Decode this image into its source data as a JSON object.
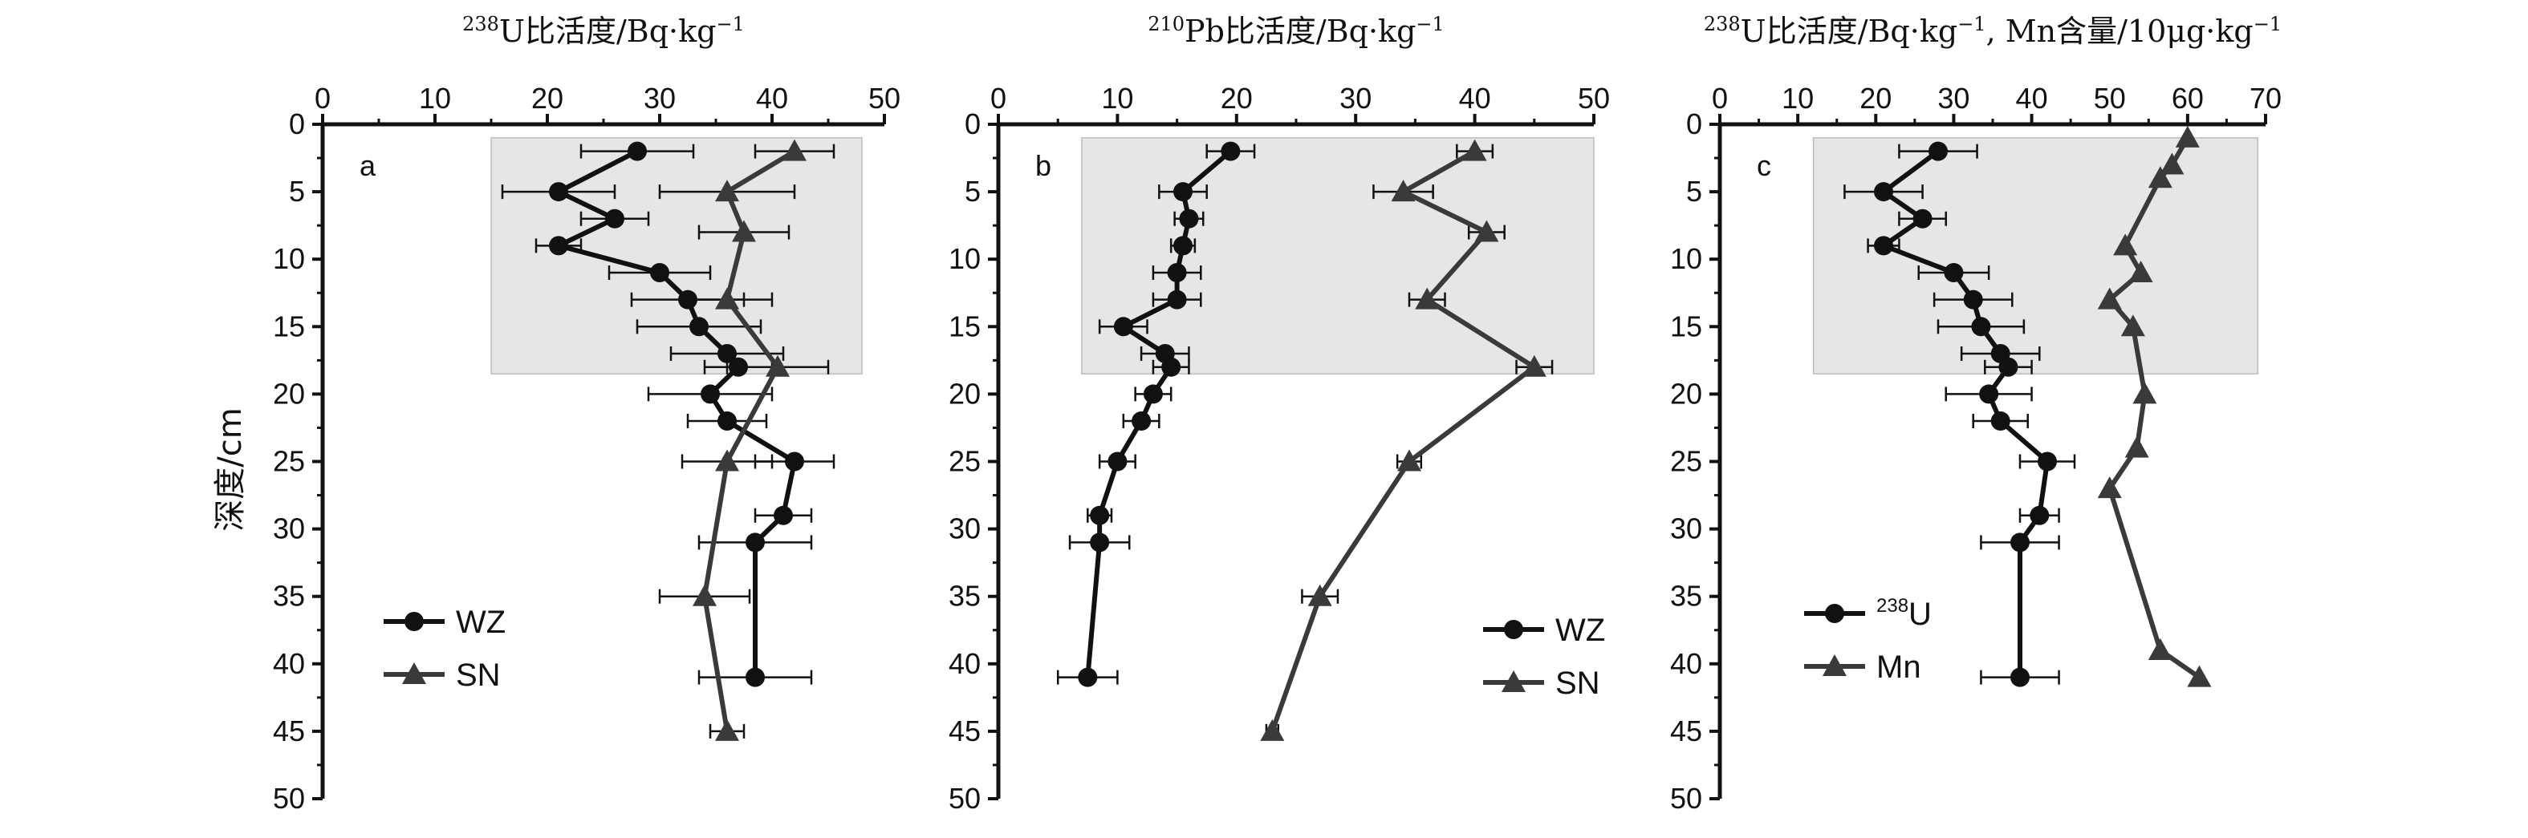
{
  "chart_data": [
    {
      "type": "line",
      "panel_label": "a",
      "title": {
        "sup": "238",
        "text": "U比活度/Bq·kg",
        "exp": "−1"
      },
      "ylabel": "深度/cm",
      "xlim": [
        0,
        50
      ],
      "xticks": [
        0,
        10,
        20,
        30,
        40,
        50
      ],
      "ylim": [
        0,
        50
      ],
      "yticks": [
        0,
        5,
        10,
        15,
        20,
        25,
        30,
        35,
        40,
        45,
        50
      ],
      "shaded_region": {
        "x": [
          15,
          48
        ],
        "y": [
          1,
          18.5
        ]
      },
      "legend_position": "lower-left",
      "series": [
        {
          "name": "WZ",
          "marker": "circle",
          "color": "#111111",
          "points": [
            {
              "x": 28,
              "y": 2,
              "err": 5
            },
            {
              "x": 21,
              "y": 5,
              "err": 5
            },
            {
              "x": 26,
              "y": 7,
              "err": 3
            },
            {
              "x": 21,
              "y": 9,
              "err": 2
            },
            {
              "x": 30,
              "y": 11,
              "err": 4.5
            },
            {
              "x": 32.5,
              "y": 13,
              "err": 5
            },
            {
              "x": 33.5,
              "y": 15,
              "err": 5.5
            },
            {
              "x": 36,
              "y": 17,
              "err": 5
            },
            {
              "x": 37,
              "y": 18,
              "err": 3
            },
            {
              "x": 34.5,
              "y": 20,
              "err": 5.5
            },
            {
              "x": 36,
              "y": 22,
              "err": 3.5
            },
            {
              "x": 42,
              "y": 25,
              "err": 3.5
            },
            {
              "x": 41,
              "y": 29,
              "err": 2.5
            },
            {
              "x": 38.5,
              "y": 31,
              "err": 5
            },
            {
              "x": 38.5,
              "y": 41,
              "err": 5
            }
          ]
        },
        {
          "name": "SN",
          "marker": "triangle",
          "color": "#3a3a3a",
          "points": [
            {
              "x": 42,
              "y": 2,
              "err": 3.5
            },
            {
              "x": 36,
              "y": 5,
              "err": 6
            },
            {
              "x": 37.5,
              "y": 8,
              "err": 4
            },
            {
              "x": 36,
              "y": 13,
              "err": 4
            },
            {
              "x": 40.5,
              "y": 18,
              "err": 4.5
            },
            {
              "x": 36,
              "y": 25,
              "err": 4
            },
            {
              "x": 34,
              "y": 35,
              "err": 4
            },
            {
              "x": 36,
              "y": 45,
              "err": 1.5
            }
          ]
        }
      ]
    },
    {
      "type": "line",
      "panel_label": "b",
      "title": {
        "sup": "210",
        "text": "Pb比活度/Bq·kg",
        "exp": "−1"
      },
      "xlim": [
        0,
        50
      ],
      "xticks": [
        0,
        10,
        20,
        30,
        40,
        50
      ],
      "ylim": [
        0,
        50
      ],
      "yticks": [
        0,
        5,
        10,
        15,
        20,
        25,
        30,
        35,
        40,
        45,
        50
      ],
      "shaded_region": {
        "x": [
          7,
          50
        ],
        "y": [
          1,
          18.5
        ]
      },
      "legend_position": "lower-right",
      "series": [
        {
          "name": "WZ",
          "marker": "circle",
          "color": "#111111",
          "points": [
            {
              "x": 19.5,
              "y": 2,
              "err": 2
            },
            {
              "x": 15.5,
              "y": 5,
              "err": 2
            },
            {
              "x": 16,
              "y": 7,
              "err": 1.2
            },
            {
              "x": 15.5,
              "y": 9,
              "err": 1
            },
            {
              "x": 15,
              "y": 11,
              "err": 2
            },
            {
              "x": 15,
              "y": 13,
              "err": 2
            },
            {
              "x": 10.5,
              "y": 15,
              "err": 2
            },
            {
              "x": 14,
              "y": 17,
              "err": 2
            },
            {
              "x": 14.5,
              "y": 18,
              "err": 1.5
            },
            {
              "x": 13,
              "y": 20,
              "err": 1.5
            },
            {
              "x": 12,
              "y": 22,
              "err": 1.5
            },
            {
              "x": 10,
              "y": 25,
              "err": 1.5
            },
            {
              "x": 8.5,
              "y": 29,
              "err": 1
            },
            {
              "x": 8.5,
              "y": 31,
              "err": 2.5
            },
            {
              "x": 7.5,
              "y": 41,
              "err": 2.5
            }
          ]
        },
        {
          "name": "SN",
          "marker": "triangle",
          "color": "#3a3a3a",
          "points": [
            {
              "x": 40,
              "y": 2,
              "err": 1.5
            },
            {
              "x": 34,
              "y": 5,
              "err": 2.5
            },
            {
              "x": 41,
              "y": 8,
              "err": 1.5
            },
            {
              "x": 36,
              "y": 13,
              "err": 1.5
            },
            {
              "x": 45,
              "y": 18,
              "err": 1.5
            },
            {
              "x": 34.5,
              "y": 25,
              "err": 1
            },
            {
              "x": 27,
              "y": 35,
              "err": 1.5
            },
            {
              "x": 23,
              "y": 45,
              "err": 0.5
            }
          ]
        }
      ]
    },
    {
      "type": "line",
      "panel_label": "c",
      "title": {
        "sup": "238",
        "text": "U比活度/Bq·kg",
        "exp": "−1",
        "tail": ", Mn含量/10μg·kg",
        "exp2": "−1"
      },
      "xlim": [
        0,
        70
      ],
      "xticks": [
        0,
        10,
        20,
        30,
        40,
        50,
        60,
        70
      ],
      "ylim": [
        0,
        50
      ],
      "yticks": [
        0,
        5,
        10,
        15,
        20,
        25,
        30,
        35,
        40,
        45,
        50
      ],
      "shaded_region": {
        "x": [
          12,
          69
        ],
        "y": [
          1,
          18.5
        ]
      },
      "legend_position": "lower-left",
      "series": [
        {
          "name": "U",
          "name_sup": "238",
          "marker": "circle",
          "color": "#111111",
          "points": [
            {
              "x": 28,
              "y": 2,
              "err": 5
            },
            {
              "x": 21,
              "y": 5,
              "err": 5
            },
            {
              "x": 26,
              "y": 7,
              "err": 3
            },
            {
              "x": 21,
              "y": 9,
              "err": 2
            },
            {
              "x": 30,
              "y": 11,
              "err": 4.5
            },
            {
              "x": 32.5,
              "y": 13,
              "err": 5
            },
            {
              "x": 33.5,
              "y": 15,
              "err": 5.5
            },
            {
              "x": 36,
              "y": 17,
              "err": 5
            },
            {
              "x": 37,
              "y": 18,
              "err": 3
            },
            {
              "x": 34.5,
              "y": 20,
              "err": 5.5
            },
            {
              "x": 36,
              "y": 22,
              "err": 3.5
            },
            {
              "x": 42,
              "y": 25,
              "err": 3.5
            },
            {
              "x": 41,
              "y": 29,
              "err": 2.5
            },
            {
              "x": 38.5,
              "y": 31,
              "err": 5
            },
            {
              "x": 38.5,
              "y": 41,
              "err": 5
            }
          ]
        },
        {
          "name": "Mn",
          "marker": "triangle",
          "color": "#3a3a3a",
          "points": [
            {
              "x": 60,
              "y": 1,
              "err": 0
            },
            {
              "x": 58,
              "y": 3,
              "err": 0
            },
            {
              "x": 56.5,
              "y": 4,
              "err": 0
            },
            {
              "x": 52,
              "y": 9,
              "err": 0
            },
            {
              "x": 54,
              "y": 11,
              "err": 0
            },
            {
              "x": 50,
              "y": 13,
              "err": 0
            },
            {
              "x": 53,
              "y": 15,
              "err": 0
            },
            {
              "x": 54.5,
              "y": 20,
              "err": 0
            },
            {
              "x": 53.5,
              "y": 24,
              "err": 0
            },
            {
              "x": 50,
              "y": 27,
              "err": 0
            },
            {
              "x": 56.5,
              "y": 39,
              "err": 0
            },
            {
              "x": 61.5,
              "y": 41,
              "err": 0
            }
          ]
        }
      ]
    }
  ]
}
